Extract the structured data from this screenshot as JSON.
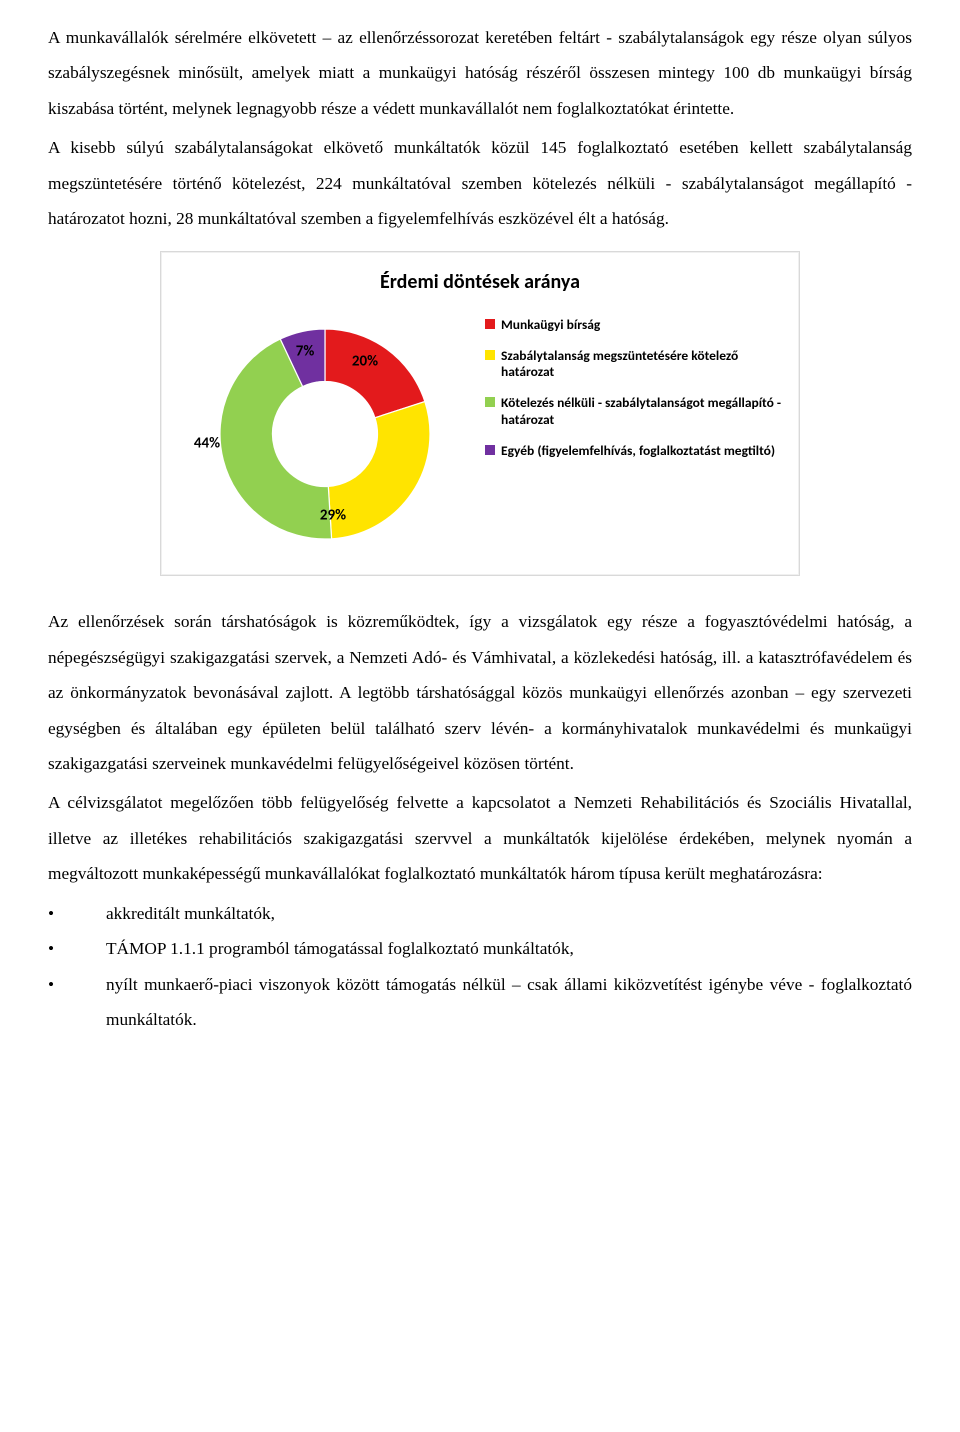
{
  "paragraphs": {
    "p1": "A munkavállalók sérelmére elkövetett – az ellenőrzéssorozat keretében feltárt - szabálytalanságok egy része olyan súlyos szabályszegésnek minősült, amelyek miatt a munkaügyi hatóság részéről összesen mintegy 100 db munkaügyi bírság kiszabása történt, melynek legnagyobb része a védett munkavállalót nem foglalkoztatókat érintette.",
    "p2": "A kisebb súlyú szabálytalanságokat elkövető munkáltatók közül 145 foglalkoztató esetében kellett szabálytalanság megszüntetésére történő kötelezést, 224 munkáltatóval szemben kötelezés nélküli - szabálytalanságot megállapító - határozatot hozni, 28 munkáltatóval szemben a figyelemfelhívás eszközével élt a hatóság.",
    "p3": "Az ellenőrzések során társhatóságok is közreműködtek, így a vizsgálatok egy része a fogyasztóvédelmi hatóság, a népegészségügyi szakigazgatási szervek, a Nemzeti Adó- és Vámhivatal, a közlekedési hatóság, ill. a katasztrófavédelem és az önkormányzatok bevonásával zajlott. A legtöbb társhatósággal közös munkaügyi ellenőrzés azonban – egy szervezeti egységben és általában egy épületen belül található szerv lévén- a kormányhivatalok munkavédelmi és munkaügyi szakigazgatási szerveinek munkavédelmi felügyelőségeivel közösen történt.",
    "p4": "A célvizsgálatot megelőzően több felügyelőség felvette a kapcsolatot a Nemzeti Rehabilitációs és Szociális Hivatallal, illetve az illetékes rehabilitációs szakigazgatási szervvel a munkáltatók kijelölése érdekében, melynek nyomán a megváltozott munkaképességű munkavállalókat foglalkoztató munkáltatók három típusa került meghatározásra:"
  },
  "bullets": {
    "b1": "akkreditált munkáltatók,",
    "b2": "TÁMOP 1.1.1 programból támogatással foglalkoztató munkáltatók,",
    "b3": "nyílt munkaerő-piaci viszonyok között támogatás nélkül – csak állami kiközvetítést igénybe véve - foglalkoztató munkáltatók."
  },
  "chart": {
    "title": "Érdemi döntések aránya",
    "type": "donut",
    "background_color": "#ffffff",
    "border_color": "#d9d9d9",
    "title_fontsize": 20,
    "label_fontsize": 15,
    "legend_fontsize": 13.5,
    "inner_radius_pct": 50,
    "slices": [
      {
        "label": "Munkaügyi bírság",
        "value": 20,
        "display": "20%",
        "color": "#e31a1c"
      },
      {
        "label": "Szabálytalanság megszüntetésére kötelező határozat",
        "value": 29,
        "display": "29%",
        "color": "#ffe400"
      },
      {
        "label": "Kötelezés nélküli - szabálytalanságot megállapító - határozat",
        "value": 44,
        "display": "44%",
        "color": "#92d050"
      },
      {
        "label": "Egyéb (figyelemfelhívás, foglalkoztatást megtiltó)",
        "value": 7,
        "display": "7%",
        "color": "#7030a0"
      }
    ]
  }
}
